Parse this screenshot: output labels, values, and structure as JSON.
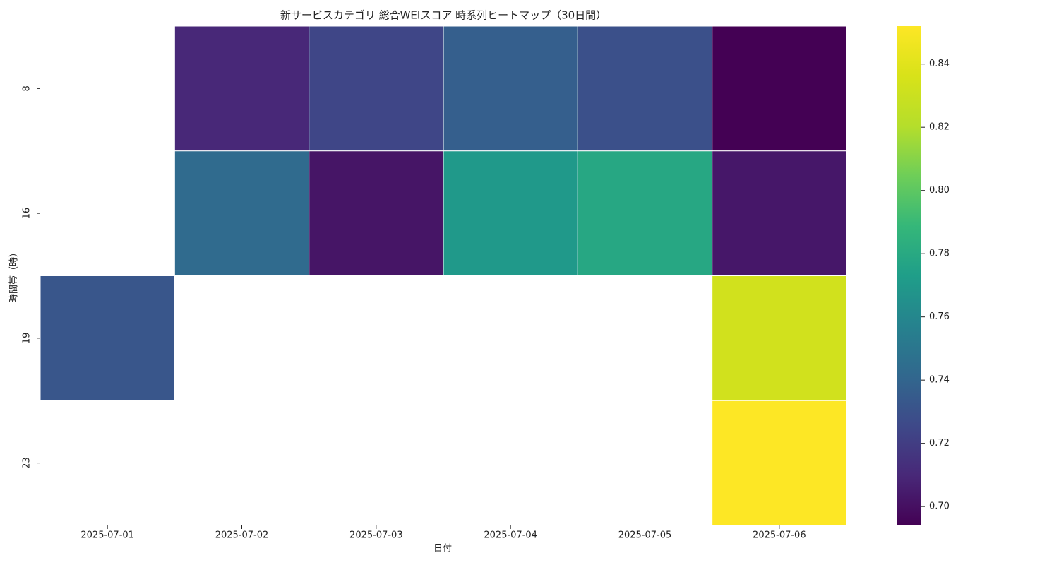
{
  "chart_data": {
    "type": "heatmap",
    "title": "新サービスカテゴリ 総合WEIスコア 時系列ヒートマップ（30日間）",
    "xlabel": "日付",
    "ylabel": "時間帯（時）",
    "x": [
      "2025-07-01",
      "2025-07-02",
      "2025-07-03",
      "2025-07-04",
      "2025-07-05",
      "2025-07-06"
    ],
    "y": [
      8,
      16,
      19,
      23
    ],
    "values": [
      [
        null,
        0.71,
        0.724,
        0.737,
        0.729,
        0.694
      ],
      [
        null,
        0.743,
        0.702,
        0.77,
        0.779,
        0.703
      ],
      [
        0.732,
        null,
        null,
        null,
        null,
        0.833
      ],
      [
        null,
        null,
        null,
        null,
        null,
        0.852
      ]
    ],
    "colormap": "viridis",
    "clim": [
      0.694,
      0.852
    ],
    "cticks": [
      {
        "value": 0.7,
        "label": "0.70"
      },
      {
        "value": 0.72,
        "label": "0.72"
      },
      {
        "value": 0.74,
        "label": "0.74"
      },
      {
        "value": 0.76,
        "label": "0.76"
      },
      {
        "value": 0.78,
        "label": "0.78"
      },
      {
        "value": 0.8,
        "label": "0.80"
      },
      {
        "value": 0.82,
        "label": "0.82"
      },
      {
        "value": 0.84,
        "label": "0.84"
      }
    ]
  }
}
